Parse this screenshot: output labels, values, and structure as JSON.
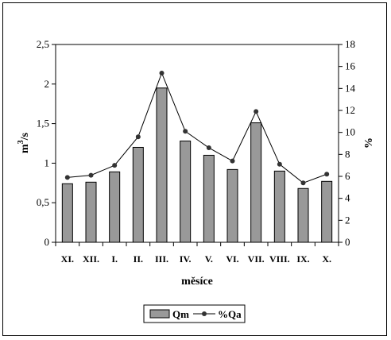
{
  "chart_data": {
    "type": "bar",
    "categories": [
      "XI.",
      "XII.",
      "I.",
      "II.",
      "III.",
      "IV.",
      "V.",
      "VI.",
      "VII.",
      "VIII.",
      "IX.",
      "X."
    ],
    "series": [
      {
        "name": "Qm",
        "type": "bar",
        "axis": "left",
        "color": "#999999",
        "values": [
          0.74,
          0.76,
          0.89,
          1.2,
          1.95,
          1.28,
          1.1,
          0.92,
          1.51,
          0.9,
          0.68,
          0.77
        ]
      },
      {
        "name": "%Qa",
        "type": "line",
        "axis": "right",
        "color": "#333333",
        "values": [
          5.9,
          6.1,
          7.0,
          9.6,
          15.4,
          10.1,
          8.6,
          7.4,
          11.9,
          7.1,
          5.4,
          6.2
        ]
      }
    ],
    "xlabel": "měsíce",
    "ylabel": "m3/s",
    "ylabel_base": "m",
    "ylabel_sup": "3",
    "ylabel_tail": "/s",
    "y2label": "%",
    "ylim": [
      0,
      2.5
    ],
    "y2lim": [
      0,
      18
    ],
    "yticks": [
      "0",
      "0,5",
      "1",
      "1,5",
      "2",
      "2,5"
    ],
    "y2ticks": [
      "0",
      "2",
      "4",
      "6",
      "8",
      "10",
      "12",
      "14",
      "16",
      "18"
    ],
    "grid": false,
    "legend_position": "bottom-center"
  }
}
